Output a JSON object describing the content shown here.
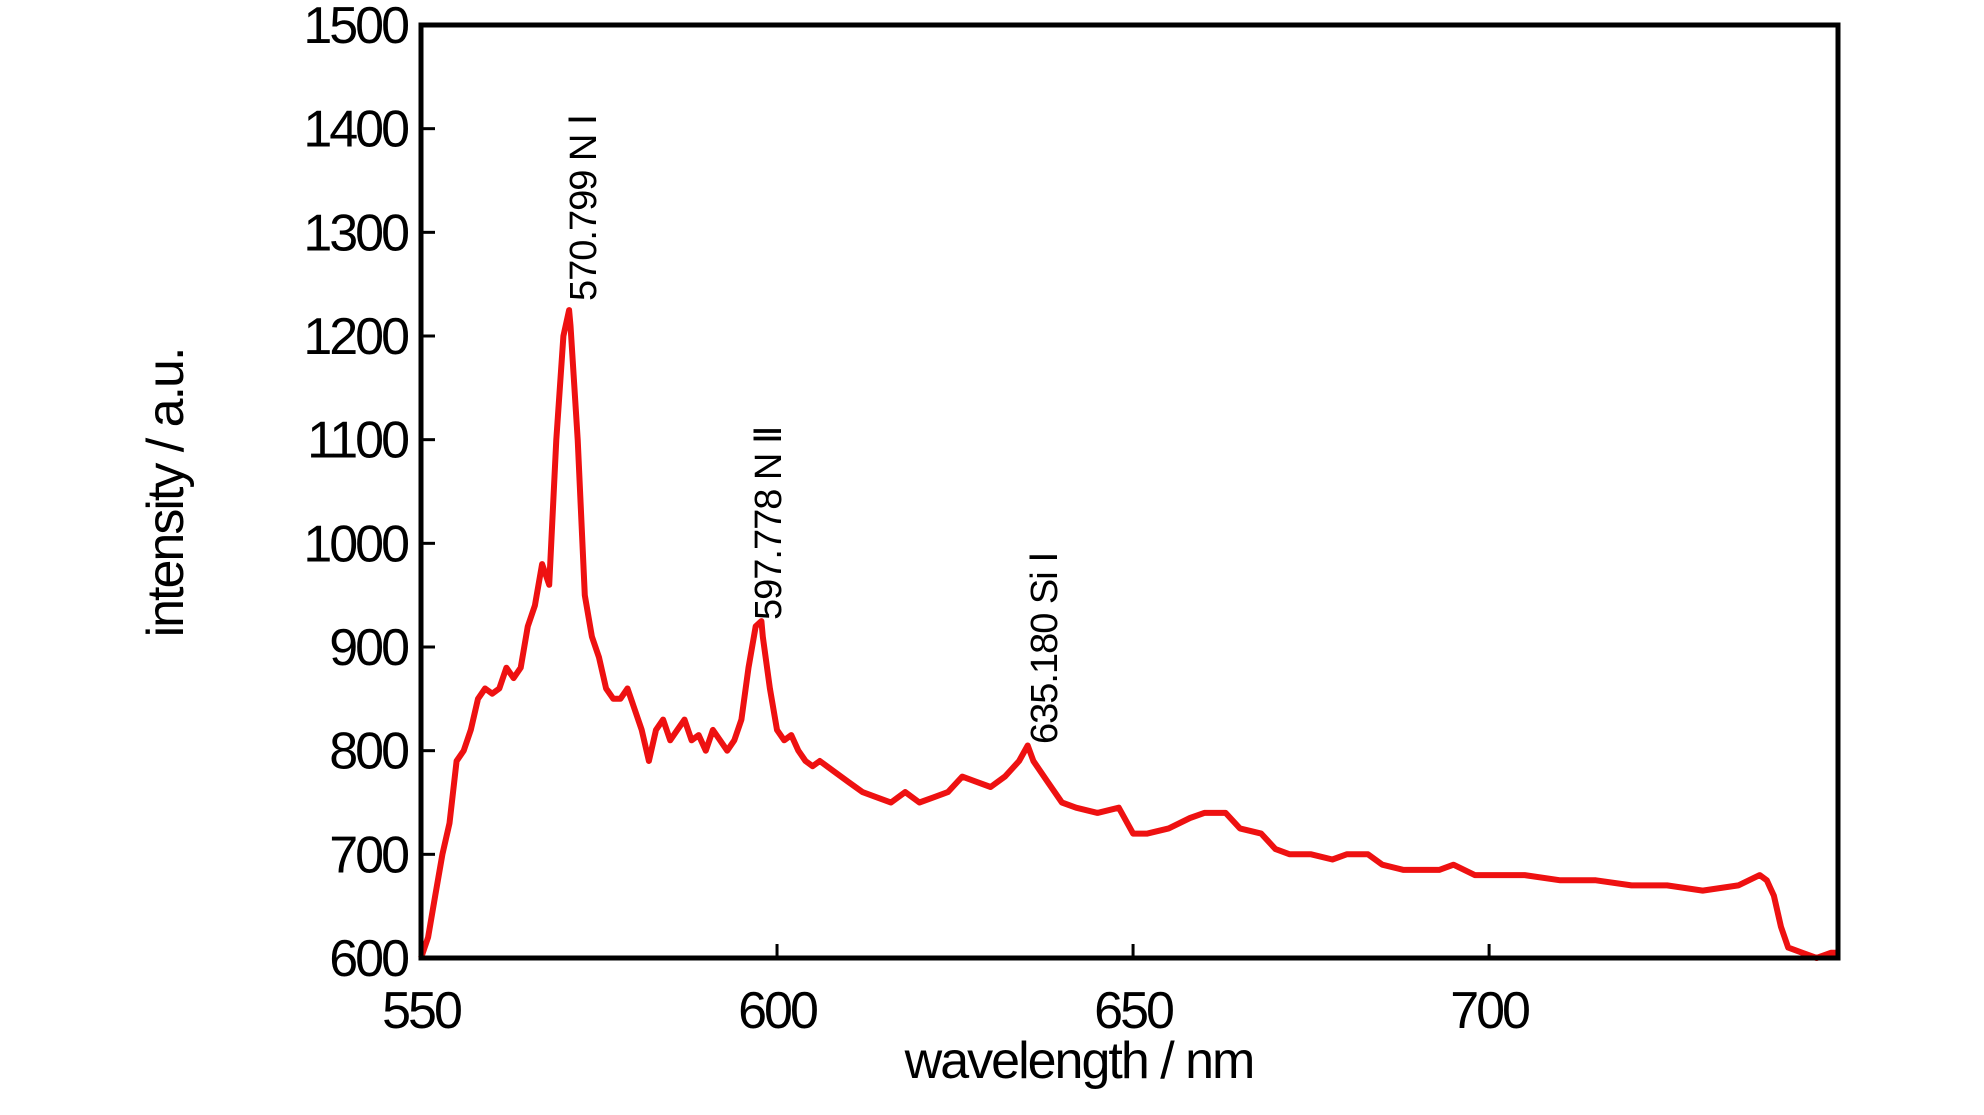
{
  "chart_data": {
    "type": "line",
    "xlabel": "wavelength / nm",
    "ylabel": "intensity / a.u.",
    "color": "#ee1111",
    "x": [
      550,
      551,
      552,
      553,
      554,
      555,
      556,
      557,
      558,
      559,
      560,
      561,
      562,
      563,
      564,
      565,
      566,
      567,
      568,
      569,
      570,
      570.8,
      571,
      572,
      573,
      574,
      575,
      576,
      577,
      578,
      579,
      580,
      581,
      582,
      583,
      584,
      585,
      586,
      587,
      588,
      589,
      590,
      591,
      592,
      593,
      594,
      595,
      596,
      597,
      597.8,
      598,
      599,
      600,
      601,
      602,
      603,
      604,
      605,
      606,
      608,
      610,
      612,
      614,
      616,
      618,
      620,
      622,
      624,
      626,
      628,
      630,
      632,
      634,
      635.2,
      636,
      638,
      640,
      642,
      645,
      648,
      650,
      652,
      655,
      658,
      660,
      663,
      665,
      668,
      670,
      672,
      675,
      678,
      680,
      683,
      685,
      688,
      690,
      693,
      695,
      698,
      700,
      705,
      710,
      715,
      720,
      725,
      730,
      735,
      738,
      739,
      740,
      741,
      742,
      744,
      746,
      748,
      749
    ],
    "values": [
      600,
      620,
      660,
      700,
      730,
      790,
      800,
      820,
      850,
      860,
      855,
      860,
      880,
      870,
      880,
      920,
      940,
      980,
      960,
      1100,
      1200,
      1225,
      1210,
      1100,
      950,
      910,
      890,
      860,
      850,
      850,
      860,
      840,
      820,
      790,
      820,
      830,
      810,
      820,
      830,
      810,
      815,
      800,
      820,
      810,
      800,
      810,
      830,
      880,
      920,
      925,
      910,
      860,
      820,
      810,
      815,
      800,
      790,
      785,
      790,
      780,
      770,
      760,
      755,
      750,
      760,
      750,
      755,
      760,
      775,
      770,
      765,
      775,
      790,
      805,
      790,
      770,
      750,
      745,
      740,
      745,
      720,
      720,
      725,
      735,
      740,
      740,
      725,
      720,
      705,
      700,
      700,
      695,
      700,
      700,
      690,
      685,
      685,
      685,
      690,
      680,
      680,
      680,
      675,
      675,
      670,
      670,
      665,
      670,
      680,
      675,
      660,
      630,
      610,
      605,
      600,
      605,
      605
    ],
    "xlim": [
      550,
      749
    ],
    "ylim": [
      600,
      1500
    ],
    "xticks": [
      550,
      600,
      650,
      700
    ],
    "yticks": [
      600,
      700,
      800,
      900,
      1000,
      1100,
      1200,
      1300,
      1400,
      1500
    ],
    "annotations": [
      "570.799 N Ⅰ",
      "597.778 N Ⅱ",
      "635.180 Si Ⅰ"
    ]
  }
}
